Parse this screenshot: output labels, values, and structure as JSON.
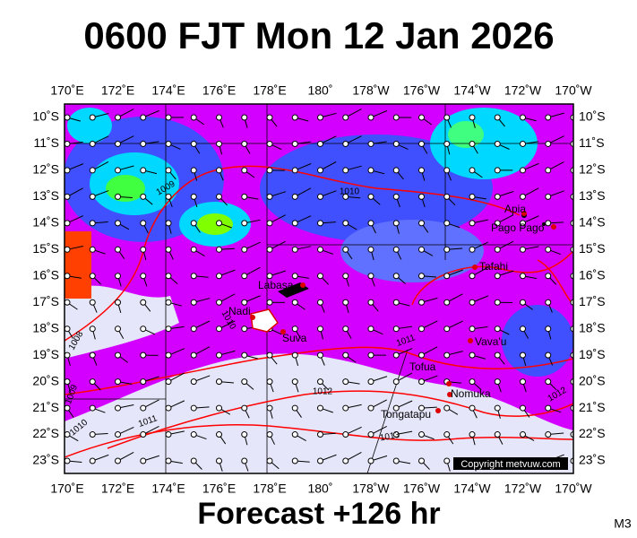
{
  "title": "0600 FJT Mon 12 Jan 2026",
  "forecast": "Forecast +126 hr",
  "model": "M3",
  "copyright": "Copyright metvuw.com",
  "longitude_labels": [
    "170˚E",
    "172˚E",
    "174˚E",
    "176˚E",
    "178˚E",
    "180˚",
    "178˚W",
    "176˚W",
    "174˚W",
    "172˚W",
    "170˚W"
  ],
  "latitude_labels": [
    "10˚S",
    "11˚S",
    "12˚S",
    "13˚S",
    "14˚S",
    "15˚S",
    "16˚S",
    "17˚S",
    "18˚S",
    "19˚S",
    "20˚S",
    "21˚S",
    "22˚S",
    "23˚S"
  ],
  "places": [
    "Labasa",
    "Nadi",
    "Suva",
    "Apia",
    "Pago Pago",
    "Tafahi",
    "Vava'u",
    "Tofua",
    "Nomuka",
    "Tongatapu"
  ],
  "isobar_labels": [
    "1009",
    "1010",
    "1010",
    "1008",
    "1011",
    "1012",
    "1012",
    "1009",
    "1010",
    "1011",
    "1013"
  ]
}
